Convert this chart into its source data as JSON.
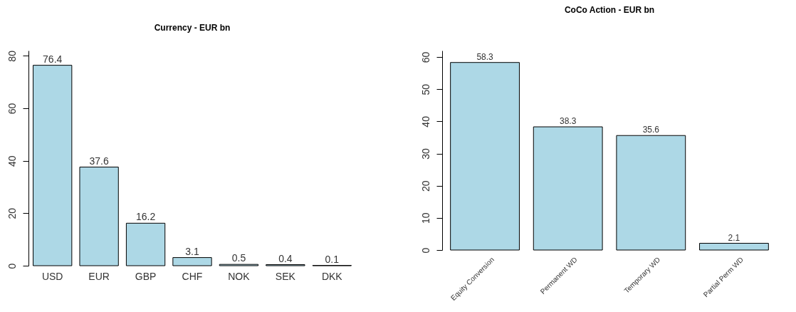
{
  "chart_data": [
    {
      "type": "bar",
      "title": "Currency - EUR bn",
      "categories": [
        "USD",
        "EUR",
        "GBP",
        "CHF",
        "NOK",
        "SEK",
        "DKK"
      ],
      "values": [
        76.4,
        37.6,
        16.2,
        3.1,
        0.5,
        0.4,
        0.1
      ],
      "color": "#add8e6",
      "ylim": [
        0,
        82
      ],
      "yticks": [
        0,
        20,
        40,
        60,
        80
      ],
      "data_labels": true
    },
    {
      "type": "bar",
      "title": "CoCo Action - EUR bn",
      "categories": [
        "Equity Conversion",
        "Permanent WD",
        "Temporary WD",
        "Partial Perm WD"
      ],
      "values": [
        58.3,
        38.3,
        35.6,
        2.1
      ],
      "color": "#add8e6",
      "ylim": [
        0,
        62
      ],
      "yticks": [
        0,
        10,
        20,
        30,
        40,
        50,
        60
      ],
      "data_labels": true
    }
  ]
}
